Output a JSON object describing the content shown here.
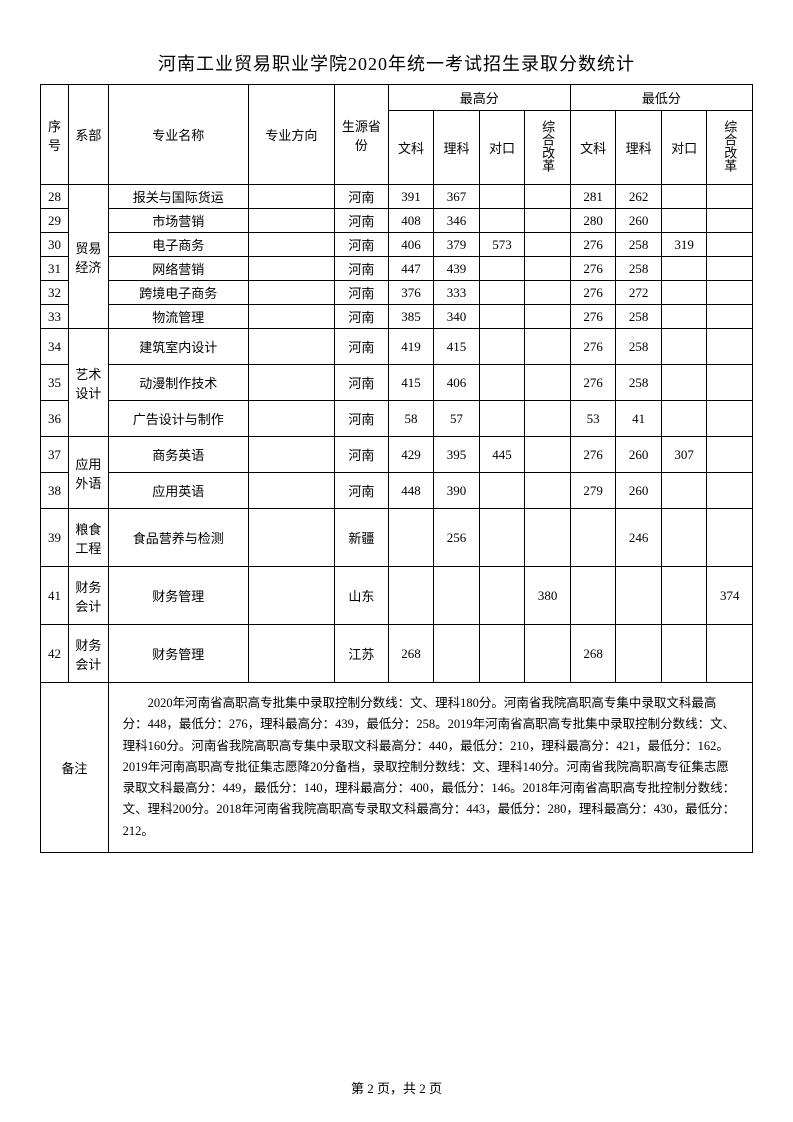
{
  "title": "河南工业贸易职业学院2020年统一考试招生录取分数统计",
  "headers": {
    "seq": "序号",
    "dept": "系部",
    "major": "专业名称",
    "direction": "专业方向",
    "province": "生源省份",
    "maxGroup": "最高分",
    "minGroup": "最低分",
    "wen": "文科",
    "li": "理科",
    "dui": "对口",
    "zong": "综合改革"
  },
  "depts": {
    "trade": "贸易经济",
    "art": "艺术设计",
    "lang": "应用外语",
    "grain": "粮食工程",
    "fin1": "财务会计",
    "fin2": "财务会计"
  },
  "rows": [
    {
      "seq": "28",
      "major": "报关与国际货运",
      "dir": "",
      "prov": "河南",
      "mw": "391",
      "ml": "367",
      "md": "",
      "mz": "",
      "nw": "281",
      "nl": "262",
      "nd": "",
      "nz": ""
    },
    {
      "seq": "29",
      "major": "市场营销",
      "dir": "",
      "prov": "河南",
      "mw": "408",
      "ml": "346",
      "md": "",
      "mz": "",
      "nw": "280",
      "nl": "260",
      "nd": "",
      "nz": ""
    },
    {
      "seq": "30",
      "major": "电子商务",
      "dir": "",
      "prov": "河南",
      "mw": "406",
      "ml": "379",
      "md": "573",
      "mz": "",
      "nw": "276",
      "nl": "258",
      "nd": "319",
      "nz": ""
    },
    {
      "seq": "31",
      "major": "网络营销",
      "dir": "",
      "prov": "河南",
      "mw": "447",
      "ml": "439",
      "md": "",
      "mz": "",
      "nw": "276",
      "nl": "258",
      "nd": "",
      "nz": ""
    },
    {
      "seq": "32",
      "major": "跨境电子商务",
      "dir": "",
      "prov": "河南",
      "mw": "376",
      "ml": "333",
      "md": "",
      "mz": "",
      "nw": "276",
      "nl": "272",
      "nd": "",
      "nz": ""
    },
    {
      "seq": "33",
      "major": "物流管理",
      "dir": "",
      "prov": "河南",
      "mw": "385",
      "ml": "340",
      "md": "",
      "mz": "",
      "nw": "276",
      "nl": "258",
      "nd": "",
      "nz": ""
    },
    {
      "seq": "34",
      "major": "建筑室内设计",
      "dir": "",
      "prov": "河南",
      "mw": "419",
      "ml": "415",
      "md": "",
      "mz": "",
      "nw": "276",
      "nl": "258",
      "nd": "",
      "nz": ""
    },
    {
      "seq": "35",
      "major": "动漫制作技术",
      "dir": "",
      "prov": "河南",
      "mw": "415",
      "ml": "406",
      "md": "",
      "mz": "",
      "nw": "276",
      "nl": "258",
      "nd": "",
      "nz": ""
    },
    {
      "seq": "36",
      "major": "广告设计与制作",
      "dir": "",
      "prov": "河南",
      "mw": "58",
      "ml": "57",
      "md": "",
      "mz": "",
      "nw": "53",
      "nl": "41",
      "nd": "",
      "nz": ""
    },
    {
      "seq": "37",
      "major": "商务英语",
      "dir": "",
      "prov": "河南",
      "mw": "429",
      "ml": "395",
      "md": "445",
      "mz": "",
      "nw": "276",
      "nl": "260",
      "nd": "307",
      "nz": ""
    },
    {
      "seq": "38",
      "major": "应用英语",
      "dir": "",
      "prov": "河南",
      "mw": "448",
      "ml": "390",
      "md": "",
      "mz": "",
      "nw": "279",
      "nl": "260",
      "nd": "",
      "nz": ""
    },
    {
      "seq": "39",
      "major": "食品营养与检测",
      "dir": "",
      "prov": "新疆",
      "mw": "",
      "ml": "256",
      "md": "",
      "mz": "",
      "nw": "",
      "nl": "246",
      "nd": "",
      "nz": ""
    },
    {
      "seq": "41",
      "major": "财务管理",
      "dir": "",
      "prov": "山东",
      "mw": "",
      "ml": "",
      "md": "",
      "mz": "380",
      "nw": "",
      "nl": "",
      "nd": "",
      "nz": "374"
    },
    {
      "seq": "42",
      "major": "财务管理",
      "dir": "",
      "prov": "江苏",
      "mw": "268",
      "ml": "",
      "md": "",
      "mz": "",
      "nw": "268",
      "nl": "",
      "nd": "",
      "nz": ""
    }
  ],
  "notesLabel": "备注",
  "notes": "2020年河南省高职高专批集中录取控制分数线：文、理科180分。河南省我院高职高专集中录取文科最高分：448，最低分：276，理科最高分：439，最低分：258。2019年河南省高职高专批集中录取控制分数线：文、理科160分。河南省我院高职高专集中录取文科最高分：440，最低分：210，理科最高分：421，最低分：162。2019年河南高职高专批征集志愿降20分备档，录取控制分数线：文、理科140分。河南省我院高职高专征集志愿录取文科最高分：449，最低分：140，理科最高分：400，最低分：146。2018年河南省高职高专批控制分数线：文、理科200分。2018年河南省我院高职高专录取文科最高分：443，最低分：280，理科最高分：430，最低分：212。",
  "footer": "第 2 页，共 2 页"
}
